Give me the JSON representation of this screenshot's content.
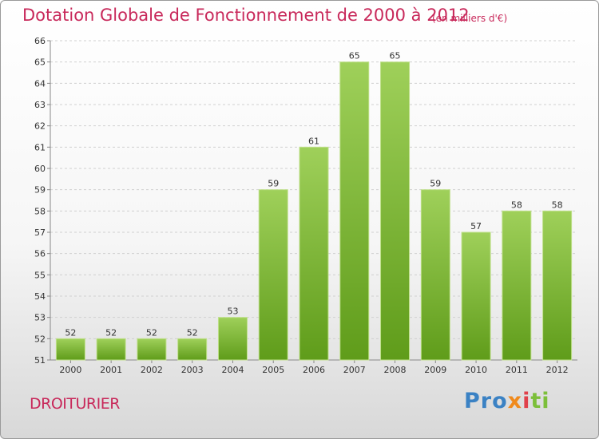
{
  "header": {
    "title": "Dotation Globale de Fonctionnement de 2000 à 2012",
    "subtitle": "(en milliers d'€)"
  },
  "footer": {
    "commune": "DROITURIER",
    "logo": {
      "brand": "Proxiti",
      "parts": [
        "Pro",
        "x",
        "i",
        "ti"
      ]
    }
  },
  "chart_data": {
    "type": "bar",
    "title": "Dotation Globale de Fonctionnement de 2000 à 2012",
    "subtitle": "(en milliers d'€)",
    "categories": [
      "2000",
      "2001",
      "2002",
      "2003",
      "2004",
      "2005",
      "2006",
      "2007",
      "2008",
      "2009",
      "2010",
      "2011",
      "2012"
    ],
    "values": [
      52,
      52,
      52,
      52,
      53,
      59,
      61,
      65,
      65,
      59,
      57,
      58,
      58
    ],
    "ylim": [
      51,
      66
    ],
    "yticks": [
      51,
      52,
      53,
      54,
      55,
      56,
      57,
      58,
      59,
      60,
      61,
      62,
      63,
      64,
      65,
      66
    ],
    "grid": "horizontal",
    "bar_color": "#7ab836",
    "label_color": "#333333"
  }
}
